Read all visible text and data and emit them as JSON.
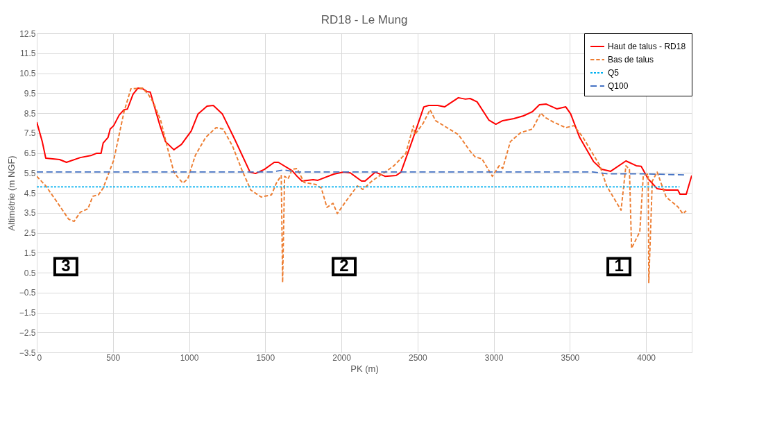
{
  "chart_data": {
    "type": "line",
    "title": "RD18 - Le Mung",
    "xlabel": "PK (m)",
    "ylabel": "Altimétrie (m NGF)",
    "xlim": [
      0,
      4300
    ],
    "xticks": [
      0,
      500,
      1000,
      1500,
      2000,
      2500,
      3000,
      3500,
      4000
    ],
    "ylim": [
      -3.5,
      12.5
    ],
    "yticks": [
      -3.5,
      -2.5,
      -1.5,
      -0.5,
      0.5,
      1.5,
      2.5,
      3.5,
      4.5,
      5.5,
      6.5,
      7.5,
      8.5,
      9.5,
      10.5,
      11.5,
      12.5
    ],
    "grid": true,
    "legend": "top right",
    "marker": "none",
    "series": [
      {
        "name": "Haut de talus - RD18",
        "color": "#ff0000",
        "line_style": "solid",
        "x": [
          0,
          36,
          59,
          150,
          195,
          286,
          360,
          391,
          422,
          436,
          468,
          482,
          505,
          541,
          573,
          595,
          632,
          664,
          695,
          723,
          745,
          809,
          845,
          900,
          950,
          1014,
          1059,
          1118,
          1159,
          1218,
          1300,
          1400,
          1436,
          1495,
          1559,
          1586,
          1677,
          1709,
          1741,
          1814,
          1845,
          1950,
          2014,
          2059,
          2132,
          2155,
          2223,
          2286,
          2359,
          2391,
          2468,
          2541,
          2573,
          2632,
          2677,
          2768,
          2814,
          2845,
          2891,
          2968,
          3014,
          3059,
          3132,
          3195,
          3254,
          3300,
          3345,
          3414,
          3473,
          3505,
          3564,
          3655,
          3709,
          3768,
          3868,
          3936,
          3968,
          4014,
          4073,
          4132,
          4209,
          4223,
          4264,
          4300
        ],
        "values": [
          8.05,
          7.07,
          6.24,
          6.17,
          6.03,
          6.27,
          6.38,
          6.48,
          6.48,
          7.0,
          7.28,
          7.7,
          7.87,
          8.4,
          8.67,
          8.7,
          9.44,
          9.75,
          9.72,
          9.58,
          9.55,
          7.87,
          7.07,
          6.66,
          6.93,
          7.6,
          8.46,
          8.85,
          8.88,
          8.46,
          7.18,
          5.54,
          5.47,
          5.68,
          6.03,
          6.03,
          5.61,
          5.33,
          5.09,
          5.16,
          5.13,
          5.44,
          5.54,
          5.5,
          5.09,
          5.09,
          5.54,
          5.33,
          5.37,
          5.54,
          7.18,
          8.81,
          8.88,
          8.88,
          8.81,
          9.27,
          9.2,
          9.23,
          9.06,
          8.15,
          7.94,
          8.12,
          8.22,
          8.36,
          8.57,
          8.92,
          8.95,
          8.71,
          8.81,
          8.46,
          7.28,
          6.07,
          5.68,
          5.58,
          6.1,
          5.86,
          5.83,
          5.2,
          4.71,
          4.64,
          4.64,
          4.43,
          4.43,
          5.37
        ]
      },
      {
        "name": "Bas de talus",
        "color": "#ed7d31",
        "line_style": "dashed",
        "x": [
          0,
          59,
          132,
          209,
          245,
          286,
          336,
          368,
          405,
          436,
          482,
          505,
          541,
          573,
          618,
          695,
          732,
          768,
          814,
          859,
          900,
          927,
          959,
          991,
          1041,
          1109,
          1177,
          1223,
          1286,
          1345,
          1405,
          1473,
          1541,
          1573,
          1605,
          1614,
          1627,
          1650,
          1677,
          1709,
          1755,
          1832,
          1868,
          1905,
          1945,
          1973,
          2027,
          2105,
          2141,
          2200,
          2286,
          2345,
          2423,
          2473,
          2482,
          2536,
          2582,
          2618,
          2768,
          2845,
          2877,
          2923,
          2991,
          3036,
          3059,
          3109,
          3177,
          3254,
          3309,
          3336,
          3391,
          3473,
          3527,
          3586,
          3695,
          3741,
          3836,
          3868,
          3891,
          3905,
          3959,
          3982,
          4014,
          4018,
          4041,
          4073,
          4105,
          4132,
          4209,
          4241,
          4264
        ],
        "values": [
          5.33,
          4.85,
          4.05,
          3.18,
          3.07,
          3.53,
          3.7,
          4.33,
          4.4,
          4.74,
          5.68,
          6.13,
          7.42,
          8.57,
          9.72,
          9.75,
          9.44,
          8.99,
          8.12,
          6.73,
          5.54,
          5.27,
          4.99,
          5.2,
          6.38,
          7.28,
          7.77,
          7.7,
          6.83,
          5.68,
          4.64,
          4.29,
          4.4,
          4.99,
          5.37,
          0,
          5.33,
          5.2,
          5.68,
          5.72,
          5.02,
          4.92,
          4.74,
          3.77,
          3.98,
          3.46,
          4.05,
          4.85,
          4.67,
          5.09,
          5.54,
          5.86,
          6.48,
          7.87,
          7.42,
          7.98,
          8.67,
          8.12,
          7.42,
          6.59,
          6.31,
          6.2,
          5.33,
          5.86,
          5.72,
          7.07,
          7.52,
          7.7,
          8.5,
          8.29,
          8.05,
          7.77,
          7.87,
          7.28,
          5.89,
          4.85,
          3.63,
          5.86,
          5.68,
          1.72,
          2.55,
          5.37,
          5.44,
          0,
          5.09,
          5.54,
          4.85,
          4.29,
          3.8,
          3.46,
          3.6
        ]
      },
      {
        "name": "Q5",
        "color": "#00b0f0",
        "line_style": "dotted",
        "x": [
          0,
          4220
        ],
        "values": [
          4.8,
          4.8
        ]
      },
      {
        "name": "Q100",
        "color": "#4472c4",
        "line_style": "dashed",
        "x": [
          0,
          1550,
          1620,
          1700,
          3650,
          3750,
          4000,
          4250
        ],
        "values": [
          5.55,
          5.55,
          5.65,
          5.55,
          5.55,
          5.45,
          5.45,
          5.4
        ]
      }
    ],
    "annotations": [
      {
        "text": "3",
        "x": 191,
        "y": 0.8
      },
      {
        "text": "2",
        "x": 2018,
        "y": 0.8
      },
      {
        "text": "1",
        "x": 3822,
        "y": 0.8
      }
    ]
  }
}
